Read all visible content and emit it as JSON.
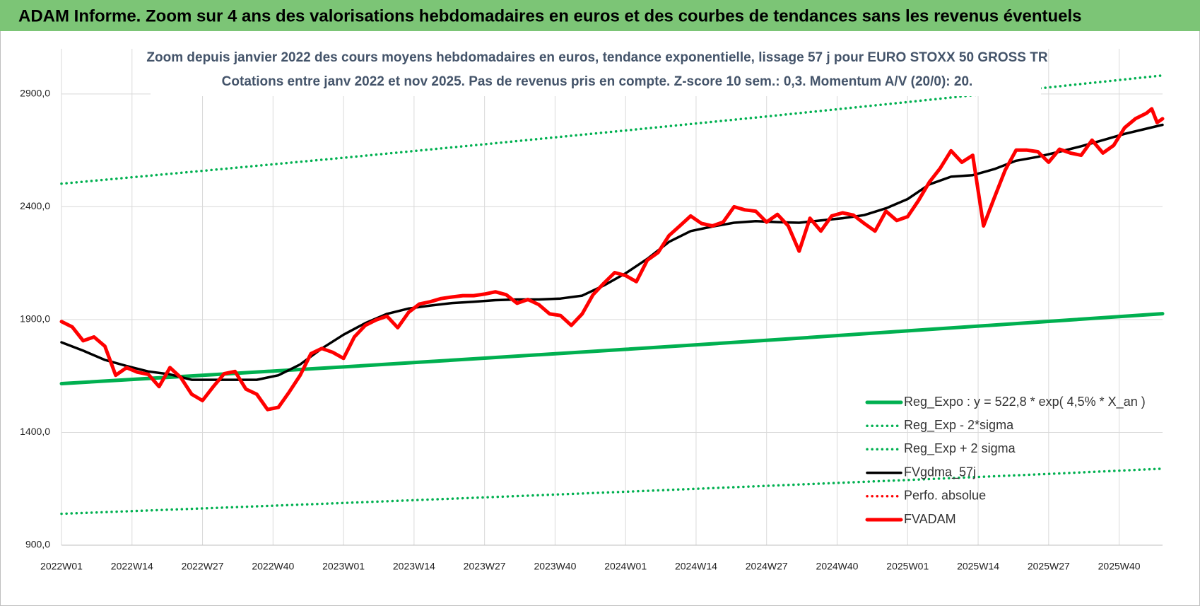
{
  "header": {
    "title": "ADAM Informe. Zoom sur 4 ans des valorisations hebdomadaires en euros et des courbes de tendances sans les revenus éventuels"
  },
  "chart_data": {
    "type": "line",
    "title": "Zoom depuis janvier 2022 des cours moyens hebdomadaires en euros, tendance exponentielle, lissage 57 j pour EURO STOXX 50 GROSS TR",
    "subtitle": "Cotations entre janv 2022 et nov 2025. Pas de revenus pris en compte. Z-score 10 sem.: 0,3. Momentum A/V (20/0): 20.",
    "xlim": [
      0,
      203
    ],
    "xticks": [
      {
        "value": 0,
        "label": "2022W01"
      },
      {
        "value": 13,
        "label": "2022W14"
      },
      {
        "value": 26,
        "label": "2022W27"
      },
      {
        "value": 39,
        "label": "2022W40"
      },
      {
        "value": 52,
        "label": "2023W01"
      },
      {
        "value": 65,
        "label": "2023W14"
      },
      {
        "value": 78,
        "label": "2023W27"
      },
      {
        "value": 91,
        "label": "2023W40"
      },
      {
        "value": 104,
        "label": "2024W01"
      },
      {
        "value": 117,
        "label": "2024W14"
      },
      {
        "value": 130,
        "label": "2024W27"
      },
      {
        "value": 143,
        "label": "2024W40"
      },
      {
        "value": 156,
        "label": "2025W01"
      },
      {
        "value": 169,
        "label": "2025W14"
      },
      {
        "value": 182,
        "label": "2025W27"
      },
      {
        "value": 195,
        "label": "2025W40"
      }
    ],
    "ylim": [
      900,
      3100
    ],
    "yticks": [
      {
        "value": 900,
        "label": "900,0"
      },
      {
        "value": 1400,
        "label": "1400,0"
      },
      {
        "value": 1900,
        "label": "1900,0"
      },
      {
        "value": 2400,
        "label": "2400,0"
      },
      {
        "value": 2900,
        "label": "2900,0"
      }
    ],
    "grid": true,
    "legend": "lower right",
    "series": [
      {
        "name": "Reg_Expo : y = 522,8 * exp( 4,5% *  X_an )",
        "color": "#00b050",
        "line_style": "thick",
        "x": [
          0,
          26,
          52,
          78,
          104,
          130,
          156,
          182,
          203
        ],
        "values": [
          1616,
          1653,
          1690,
          1729,
          1768,
          1808,
          1850,
          1892,
          1926
        ]
      },
      {
        "name": "Reg_Exp - 2*sigma",
        "color": "#00b050",
        "line_style": "dotted",
        "x": [
          0,
          26,
          52,
          78,
          104,
          130,
          156,
          182,
          203
        ],
        "values": [
          1039,
          1063,
          1087,
          1112,
          1137,
          1163,
          1189,
          1216,
          1239
        ]
      },
      {
        "name": "Reg_Exp + 2 sigma",
        "color": "#00b050",
        "line_style": "dotted",
        "x": [
          0,
          26,
          52,
          78,
          104,
          130,
          156,
          182,
          203
        ],
        "values": [
          2502,
          2559,
          2617,
          2677,
          2738,
          2800,
          2864,
          2929,
          2982
        ]
      },
      {
        "name": "FVgdma_57j",
        "color": "#000000",
        "line_style": "solid",
        "x": [
          0,
          4,
          8,
          12,
          16,
          20,
          24,
          28,
          32,
          36,
          40,
          44,
          48,
          52,
          56,
          60,
          64,
          68,
          72,
          76,
          80,
          84,
          88,
          92,
          96,
          100,
          104,
          108,
          112,
          116,
          120,
          124,
          128,
          132,
          136,
          140,
          144,
          148,
          152,
          156,
          160,
          164,
          168,
          172,
          176,
          180,
          184,
          188,
          192,
          196,
          200,
          203
        ],
        "values": [
          1799,
          1762,
          1721,
          1694,
          1670,
          1657,
          1633,
          1633,
          1633,
          1633,
          1653,
          1701,
          1772,
          1833,
          1884,
          1925,
          1949,
          1962,
          1973,
          1979,
          1986,
          1989,
          1989,
          1993,
          2006,
          2051,
          2105,
          2169,
          2244,
          2292,
          2312,
          2329,
          2336,
          2332,
          2329,
          2339,
          2349,
          2363,
          2393,
          2434,
          2499,
          2533,
          2540,
          2567,
          2604,
          2621,
          2644,
          2668,
          2695,
          2723,
          2746,
          2763
        ]
      },
      {
        "name": "Perfo. absolue",
        "color": "#ff0000",
        "line_style": "dotted",
        "x": [],
        "values": []
      },
      {
        "name": "FVADAM",
        "color": "#ff0000",
        "line_style": "thick",
        "x": [
          0,
          2,
          4,
          6,
          8,
          10,
          12,
          14,
          16,
          18,
          20,
          22,
          24,
          26,
          28,
          30,
          32,
          34,
          36,
          38,
          40,
          42,
          44,
          46,
          48,
          50,
          52,
          54,
          56,
          58,
          60,
          62,
          64,
          66,
          68,
          70,
          72,
          74,
          76,
          78,
          80,
          82,
          84,
          86,
          88,
          90,
          92,
          94,
          96,
          98,
          100,
          102,
          104,
          106,
          108,
          110,
          112,
          114,
          116,
          118,
          120,
          122,
          124,
          126,
          128,
          130,
          132,
          134,
          136,
          138,
          140,
          142,
          144,
          146,
          148,
          150,
          152,
          154,
          156,
          158,
          160,
          162,
          164,
          166,
          168,
          170,
          172,
          174,
          176,
          178,
          180,
          182,
          184,
          186,
          188,
          190,
          192,
          194,
          196,
          198,
          200,
          201,
          202,
          203
        ],
        "values": [
          1891,
          1867,
          1806,
          1823,
          1782,
          1653,
          1687,
          1667,
          1657,
          1603,
          1687,
          1643,
          1569,
          1541,
          1603,
          1660,
          1670,
          1592,
          1569,
          1501,
          1511,
          1579,
          1653,
          1749,
          1772,
          1755,
          1728,
          1823,
          1874,
          1898,
          1915,
          1864,
          1932,
          1969,
          1979,
          1993,
          2000,
          2006,
          2006,
          2013,
          2023,
          2010,
          1972,
          1989,
          1966,
          1925,
          1918,
          1874,
          1925,
          2010,
          2061,
          2108,
          2095,
          2068,
          2163,
          2197,
          2272,
          2315,
          2359,
          2326,
          2315,
          2332,
          2400,
          2386,
          2380,
          2332,
          2366,
          2315,
          2203,
          2349,
          2292,
          2359,
          2373,
          2363,
          2326,
          2292,
          2380,
          2339,
          2356,
          2427,
          2509,
          2570,
          2648,
          2597,
          2628,
          2315,
          2441,
          2563,
          2651,
          2651,
          2644,
          2597,
          2655,
          2638,
          2628,
          2695,
          2638,
          2672,
          2750,
          2790,
          2814,
          2834,
          2773,
          2790
        ]
      }
    ]
  }
}
